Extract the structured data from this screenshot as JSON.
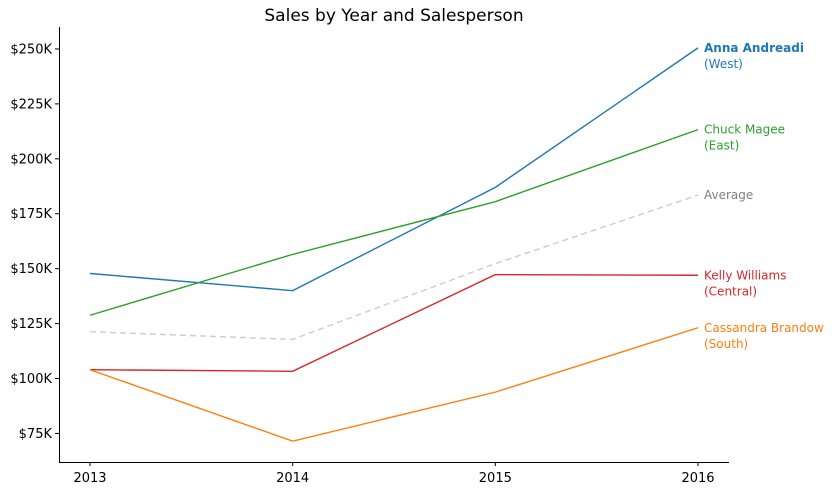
{
  "chart_data": {
    "type": "line",
    "title": "Sales by Year and Salesperson",
    "xlabel": "",
    "ylabel": "",
    "x": [
      "2013",
      "2014",
      "2015",
      "2016"
    ],
    "ylim": [
      62000,
      260000
    ],
    "yticks": [
      75000,
      100000,
      125000,
      150000,
      175000,
      200000,
      225000,
      250000
    ],
    "ytick_labels": [
      "$75K",
      "$100K",
      "$125K",
      "$150K",
      "$175K",
      "$200K",
      "$225K",
      "$250K"
    ],
    "grid": false,
    "legend": "direct labels at line ends",
    "series": [
      {
        "name": "Anna Andreadi",
        "region": "(West)",
        "color": "#1f77b4",
        "bold": true,
        "dashed": false,
        "values": [
          147800,
          140000,
          187000,
          250500
        ]
      },
      {
        "name": "Chuck Magee",
        "region": "(East)",
        "color": "#2ca02c",
        "bold": false,
        "dashed": false,
        "values": [
          128800,
          156500,
          180500,
          213300
        ]
      },
      {
        "name": "Average",
        "region": "",
        "color": "#cccccc",
        "label_color": "#808080",
        "bold": false,
        "dashed": true,
        "values": [
          121300,
          117800,
          152300,
          183500
        ]
      },
      {
        "name": "Kelly Williams",
        "region": "(Central)",
        "color": "#d62728",
        "bold": false,
        "dashed": false,
        "values": [
          104000,
          103300,
          147300,
          147000
        ]
      },
      {
        "name": "Cassandra Brandow",
        "region": "(South)",
        "color": "#ff7f0e",
        "bold": false,
        "dashed": false,
        "values": [
          104000,
          71500,
          93800,
          123100
        ]
      }
    ]
  }
}
